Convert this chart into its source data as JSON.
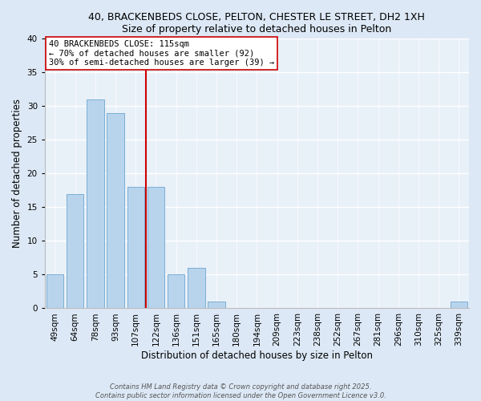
{
  "title_line1": "40, BRACKENBEDS CLOSE, PELTON, CHESTER LE STREET, DH2 1XH",
  "title_line2": "Size of property relative to detached houses in Pelton",
  "xlabel": "Distribution of detached houses by size in Pelton",
  "ylabel": "Number of detached properties",
  "bar_labels": [
    "49sqm",
    "64sqm",
    "78sqm",
    "93sqm",
    "107sqm",
    "122sqm",
    "136sqm",
    "151sqm",
    "165sqm",
    "180sqm",
    "194sqm",
    "209sqm",
    "223sqm",
    "238sqm",
    "252sqm",
    "267sqm",
    "281sqm",
    "296sqm",
    "310sqm",
    "325sqm",
    "339sqm"
  ],
  "bar_values": [
    5,
    17,
    31,
    29,
    18,
    18,
    5,
    6,
    1,
    0,
    0,
    0,
    0,
    0,
    0,
    0,
    0,
    0,
    0,
    0,
    1
  ],
  "bar_color": "#b8d4ec",
  "bar_edge_color": "#7aaed4",
  "reference_line_x": 4.5,
  "reference_line_color": "#cc0000",
  "ylim": [
    0,
    40
  ],
  "yticks": [
    0,
    5,
    10,
    15,
    20,
    25,
    30,
    35,
    40
  ],
  "annotation_text": "40 BRACKENBEDS CLOSE: 115sqm\n← 70% of detached houses are smaller (92)\n30% of semi-detached houses are larger (39) →",
  "annotation_box_color": "#ffffff",
  "annotation_border_color": "#cc0000",
  "footer_text": "Contains HM Land Registry data © Crown copyright and database right 2025.\nContains public sector information licensed under the Open Government Licence v3.0.",
  "bg_color": "#dce8f5",
  "plot_bg_color": "#e8f0f8"
}
